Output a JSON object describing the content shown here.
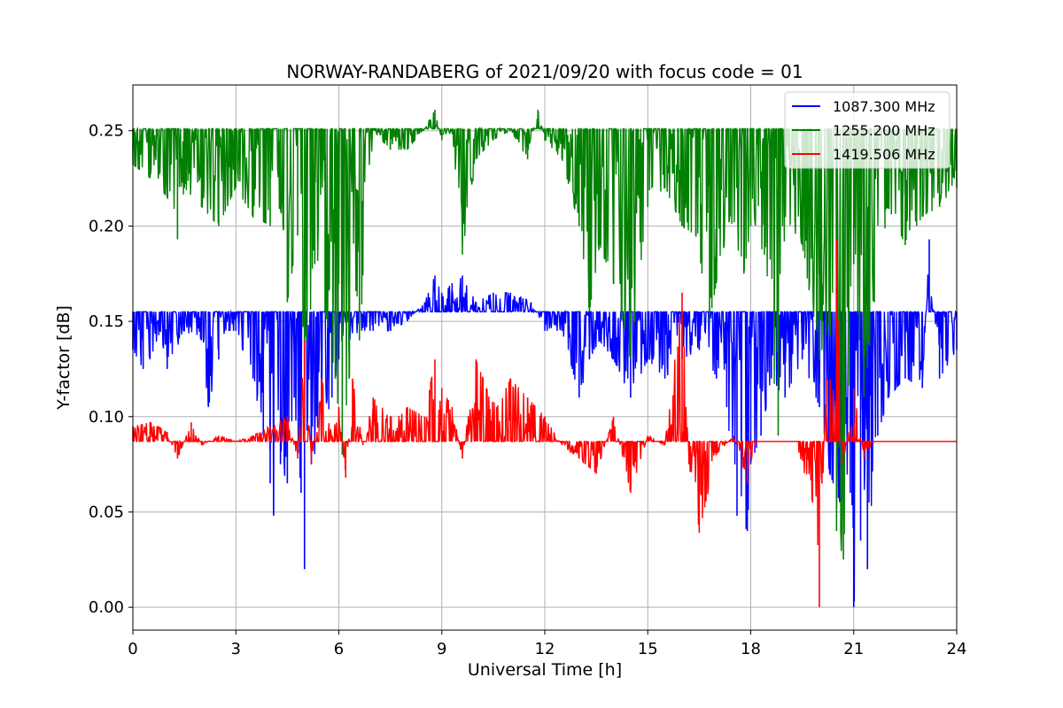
{
  "chart_data": {
    "type": "line",
    "title": "NORWAY-RANDABERG of 2021/09/20 with focus code = 01",
    "xlabel": "Universal Time [h]",
    "ylabel": "Y-factor [dB]",
    "xlim": [
      0,
      24
    ],
    "ylim": [
      -0.012,
      0.274
    ],
    "xticks": [
      0,
      3,
      6,
      9,
      12,
      15,
      18,
      21,
      24
    ],
    "xtick_labels": [
      "0",
      "3",
      "6",
      "9",
      "12",
      "15",
      "18",
      "21",
      "24"
    ],
    "yticks": [
      0.0,
      0.05,
      0.1,
      0.15,
      0.2,
      0.25
    ],
    "ytick_labels": [
      "0.00",
      "0.05",
      "0.10",
      "0.15",
      "0.20",
      "0.25"
    ],
    "grid": true,
    "legend_position": "top-right",
    "series": [
      {
        "name": "1087.300 MHz",
        "color": "#0000ff",
        "baseline": 0.155,
        "x": [
          0,
          0.3,
          0.5,
          0.8,
          1.0,
          1.5,
          2.0,
          2.2,
          2.5,
          2.8,
          3.0,
          3.2,
          3.5,
          3.8,
          4.0,
          4.1,
          4.3,
          4.5,
          4.7,
          4.9,
          5.0,
          5.2,
          5.5,
          5.8,
          6.0,
          6.3,
          6.6,
          7.0,
          7.5,
          8.0,
          8.5,
          8.8,
          9.0,
          9.3,
          9.6,
          10.0,
          10.5,
          11.0,
          11.3,
          11.6,
          12.0,
          12.5,
          12.8,
          13.0,
          13.3,
          13.6,
          14.0,
          14.5,
          15.0,
          15.5,
          16.0,
          16.5,
          17.0,
          17.3,
          17.6,
          17.9,
          18.0,
          18.3,
          18.6,
          19.0,
          19.5,
          20.0,
          20.3,
          20.6,
          20.9,
          21.0,
          21.2,
          21.4,
          21.7,
          22.0,
          22.5,
          23.0,
          23.2,
          23.5,
          24.0
        ],
        "y": [
          0.135,
          0.125,
          0.13,
          0.145,
          0.125,
          0.145,
          0.14,
          0.105,
          0.13,
          0.145,
          0.145,
          0.135,
          0.12,
          0.09,
          0.065,
          0.048,
          0.075,
          0.065,
          0.11,
          0.06,
          0.02,
          0.075,
          0.09,
          0.11,
          0.13,
          0.14,
          0.145,
          0.145,
          0.145,
          0.15,
          0.16,
          0.174,
          0.165,
          0.17,
          0.174,
          0.16,
          0.165,
          0.165,
          0.163,
          0.16,
          0.145,
          0.145,
          0.125,
          0.11,
          0.13,
          0.14,
          0.13,
          0.11,
          0.13,
          0.12,
          0.13,
          0.135,
          0.12,
          0.105,
          0.048,
          0.04,
          0.075,
          0.09,
          0.12,
          0.11,
          0.13,
          0.105,
          0.07,
          0.055,
          0.06,
          0.0,
          0.035,
          0.02,
          0.09,
          0.11,
          0.12,
          0.115,
          0.193,
          0.12,
          0.135
        ]
      },
      {
        "name": "1255.200 MHz",
        "color": "#008000",
        "baseline": 0.251,
        "x": [
          0,
          0.5,
          1.0,
          1.3,
          1.5,
          2.0,
          2.5,
          3.0,
          3.5,
          4.0,
          4.3,
          4.5,
          4.8,
          5.0,
          5.3,
          5.6,
          5.9,
          6.1,
          6.3,
          6.6,
          7.0,
          7.5,
          8.0,
          8.5,
          8.8,
          9.0,
          9.3,
          9.6,
          10.0,
          10.5,
          11.0,
          11.5,
          11.8,
          12.0,
          12.5,
          13.0,
          13.3,
          13.6,
          14.0,
          14.5,
          15.0,
          15.5,
          16.0,
          16.4,
          16.8,
          17.0,
          17.4,
          17.8,
          18.0,
          18.4,
          18.8,
          19.0,
          19.5,
          20.0,
          20.3,
          20.5,
          20.7,
          21.0,
          21.3,
          21.6,
          22.0,
          22.5,
          23.0,
          23.5,
          24.0
        ],
        "y": [
          0.232,
          0.225,
          0.215,
          0.193,
          0.22,
          0.21,
          0.2,
          0.22,
          0.205,
          0.2,
          0.21,
          0.16,
          0.195,
          0.12,
          0.18,
          0.155,
          0.12,
          0.08,
          0.12,
          0.14,
          0.25,
          0.24,
          0.24,
          0.251,
          0.261,
          0.245,
          0.25,
          0.185,
          0.235,
          0.245,
          0.25,
          0.235,
          0.261,
          0.245,
          0.235,
          0.2,
          0.155,
          0.19,
          0.17,
          0.13,
          0.21,
          0.22,
          0.2,
          0.195,
          0.15,
          0.17,
          0.205,
          0.175,
          0.2,
          0.185,
          0.09,
          0.205,
          0.19,
          0.13,
          0.15,
          0.04,
          0.025,
          0.18,
          0.11,
          0.16,
          0.21,
          0.19,
          0.205,
          0.21,
          0.22
        ]
      },
      {
        "name": "1419.506 MHz",
        "color": "#ff0000",
        "baseline": 0.087,
        "x": [
          0,
          0.5,
          1.0,
          1.3,
          1.7,
          2.0,
          2.5,
          3.0,
          3.5,
          4.0,
          4.5,
          4.8,
          5.0,
          5.2,
          5.5,
          5.8,
          6.0,
          6.2,
          6.4,
          6.7,
          7.0,
          7.5,
          8.0,
          8.5,
          8.8,
          9.0,
          9.3,
          9.6,
          10.0,
          10.3,
          10.6,
          11.0,
          11.5,
          12.0,
          12.5,
          13.0,
          13.5,
          14.0,
          14.5,
          15.0,
          15.5,
          16.0,
          16.2,
          16.5,
          17.0,
          17.5,
          17.9,
          18.2,
          18.8,
          19.3,
          19.8,
          20.0,
          20.2,
          20.5,
          20.7,
          21.0,
          21.3,
          21.6,
          22.0,
          22.5,
          23.0,
          23.5,
          24.0
        ],
        "y": [
          0.095,
          0.097,
          0.092,
          0.078,
          0.097,
          0.085,
          0.09,
          0.087,
          0.09,
          0.095,
          0.1,
          0.078,
          0.14,
          0.075,
          0.12,
          0.09,
          0.105,
          0.068,
          0.12,
          0.085,
          0.11,
          0.1,
          0.105,
          0.1,
          0.13,
          0.115,
          0.105,
          0.078,
          0.13,
          0.115,
          0.105,
          0.12,
          0.11,
          0.1,
          0.085,
          0.078,
          0.07,
          0.1,
          0.06,
          0.09,
          0.085,
          0.165,
          0.075,
          0.039,
          0.08,
          0.09,
          0.065,
          0.087,
          0.087,
          0.087,
          0.055,
          0.0,
          0.12,
          0.193,
          0.075,
          0.115,
          0.078,
          0.087,
          0.087,
          0.087,
          0.087,
          0.087,
          0.087
        ]
      }
    ]
  }
}
